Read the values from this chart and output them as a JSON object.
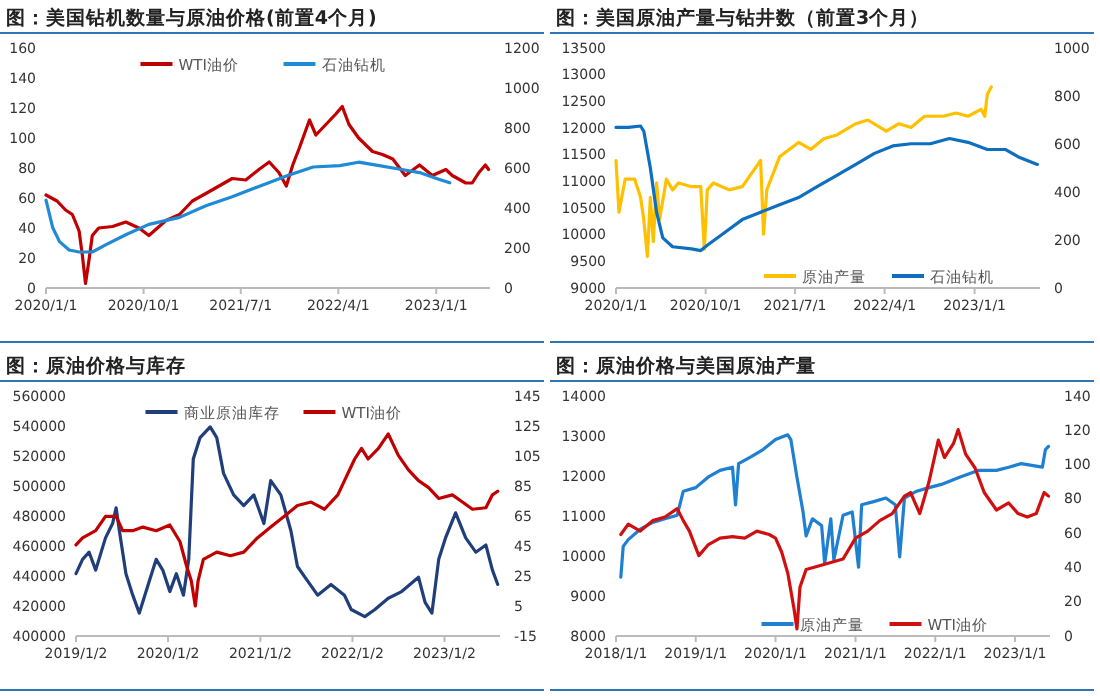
{
  "chart_data": [
    {
      "type": "line",
      "title": "图：美国钻机数量与原油价格(前置4个月)",
      "legend": "top",
      "xlim": [
        "2020-01-01",
        "2023-06-01"
      ],
      "xticks": [
        {
          "value": "2020-01-01",
          "label": "2020/1/1"
        },
        {
          "value": "2020-10-01",
          "label": "2020/10/1"
        },
        {
          "value": "2021-07-01",
          "label": "2021/7/1"
        },
        {
          "value": "2022-04-01",
          "label": "2022/4/1"
        },
        {
          "value": "2023-01-01",
          "label": "2023/1/1"
        }
      ],
      "ylim": [
        0,
        160
      ],
      "yticks": [
        0,
        20,
        40,
        60,
        80,
        100,
        120,
        140,
        160
      ],
      "y2lim": [
        0,
        1200
      ],
      "y2ticks": [
        0,
        200,
        400,
        600,
        800,
        1000,
        1200
      ],
      "series": [
        {
          "name": "WTI油价",
          "color": "#c00000",
          "x": [
            "2020-01-01",
            "2020-02-01",
            "2020-02-25",
            "2020-03-15",
            "2020-04-03",
            "2020-04-12",
            "2020-04-21",
            "2020-05-01",
            "2020-05-10",
            "2020-05-28",
            "2020-07-06",
            "2020-08-12",
            "2020-09-18",
            "2020-10-16",
            "2020-12-03",
            "2021-01-10",
            "2021-02-15",
            "2021-03-25",
            "2021-05-01",
            "2021-06-07",
            "2021-07-15",
            "2021-08-21",
            "2021-09-19",
            "2021-10-16",
            "2021-11-06",
            "2021-11-24",
            "2021-12-12",
            "2022-01-10",
            "2022-01-28",
            "2022-02-25",
            "2022-03-25",
            "2022-04-12",
            "2022-05-01",
            "2022-05-28",
            "2022-07-06",
            "2022-08-03",
            "2022-09-01",
            "2022-10-06",
            "2022-11-15",
            "2022-12-21",
            "2023-01-28",
            "2023-02-15",
            "2023-03-25",
            "2023-04-12",
            "2023-05-01",
            "2023-05-19",
            "2023-05-28"
          ],
          "values": [
            62,
            58,
            52,
            49,
            38,
            22,
            3,
            19,
            35,
            40,
            41,
            44,
            40,
            35,
            45,
            49,
            58,
            63,
            68,
            73,
            72,
            79,
            84,
            77,
            68,
            82,
            93,
            112,
            102,
            109,
            116,
            121,
            109,
            100,
            91,
            89,
            86,
            75,
            82,
            75,
            79,
            75,
            70,
            70,
            77,
            82,
            79
          ]
        },
        {
          "name": "石油钻机",
          "color": "#1f8ad6",
          "axis": "y2",
          "x": [
            "2020-01-01",
            "2020-01-20",
            "2020-02-08",
            "2020-03-06",
            "2020-04-03",
            "2020-05-10",
            "2020-06-15",
            "2020-08-12",
            "2020-10-16",
            "2021-01-10",
            "2021-03-25",
            "2021-06-07",
            "2021-08-21",
            "2021-11-06",
            "2022-01-20",
            "2022-04-05",
            "2022-05-28",
            "2022-07-25",
            "2022-09-18",
            "2022-11-15",
            "2023-01-10",
            "2023-02-08"
          ],
          "values": [
            439,
            301,
            232,
            190,
            180,
            180,
            214,
            266,
            318,
            353,
            411,
            456,
            508,
            560,
            605,
            612,
            629,
            612,
            595,
            577,
            543,
            526
          ]
        }
      ]
    },
    {
      "type": "line",
      "title": "图：美国原油产量与钻井数（前置3个月）",
      "legend": "bottom",
      "xlim": [
        "2020-01-01",
        "2023-07-20"
      ],
      "xticks": [
        {
          "value": "2020-01-01",
          "label": "2020/1/1"
        },
        {
          "value": "2020-10-01",
          "label": "2020/10/1"
        },
        {
          "value": "2021-07-01",
          "label": "2021/7/1"
        },
        {
          "value": "2022-04-01",
          "label": "2022/4/1"
        },
        {
          "value": "2023-01-01",
          "label": "2023/1/1"
        }
      ],
      "ylim": [
        9000,
        13500
      ],
      "yticks": [
        9000,
        9500,
        10000,
        10500,
        11000,
        11500,
        12000,
        12500,
        13000,
        13500
      ],
      "y2lim": [
        0,
        1000
      ],
      "y2ticks": [
        0,
        200,
        400,
        600,
        800,
        1000
      ],
      "series": [
        {
          "name": "原油产量",
          "color": "#ffc000",
          "x": [
            "2020-01-01",
            "2020-01-10",
            "2020-01-29",
            "2020-02-27",
            "2020-03-16",
            "2020-03-26",
            "2020-04-06",
            "2020-04-15",
            "2020-04-24",
            "2020-05-04",
            "2020-05-13",
            "2020-06-03",
            "2020-06-22",
            "2020-07-10",
            "2020-08-19",
            "2020-09-16",
            "2020-09-27",
            "2020-10-06",
            "2020-10-25",
            "2020-12-12",
            "2021-01-21",
            "2021-03-18",
            "2021-03-27",
            "2021-04-06",
            "2021-05-15",
            "2021-07-12",
            "2021-08-19",
            "2021-09-27",
            "2021-11-06",
            "2022-01-03",
            "2022-02-09",
            "2022-04-06",
            "2022-05-15",
            "2022-06-21",
            "2022-08-01",
            "2022-09-27",
            "2022-11-06",
            "2022-12-12",
            "2023-01-21",
            "2023-02-01",
            "2023-02-09",
            "2023-02-21"
          ],
          "values": [
            11390,
            10420,
            11040,
            11040,
            10700,
            10280,
            9590,
            10700,
            9870,
            10970,
            10280,
            11040,
            10840,
            10970,
            10900,
            10900,
            9730,
            10840,
            10970,
            10840,
            10900,
            11390,
            10010,
            10840,
            11460,
            11730,
            11600,
            11800,
            11870,
            12080,
            12150,
            11940,
            12080,
            12010,
            12220,
            12220,
            12280,
            12220,
            12350,
            12220,
            12630,
            12770
          ]
        },
        {
          "name": "石油钻机",
          "color": "#0e6ebf",
          "axis": "y2",
          "x": [
            "2020-01-01",
            "2020-02-08",
            "2020-03-16",
            "2020-03-26",
            "2020-04-15",
            "2020-05-04",
            "2020-05-23",
            "2020-06-22",
            "2020-08-19",
            "2020-09-16",
            "2020-10-06",
            "2020-11-21",
            "2021-01-21",
            "2021-03-18",
            "2021-05-15",
            "2021-07-12",
            "2021-09-08",
            "2021-11-06",
            "2022-01-03",
            "2022-03-01",
            "2022-04-26",
            "2022-06-21",
            "2022-08-19",
            "2022-10-16",
            "2022-12-12",
            "2023-02-09",
            "2023-04-06",
            "2023-05-15",
            "2023-07-12"
          ],
          "values": [
            669,
            669,
            675,
            653,
            500,
            316,
            209,
            172,
            163,
            156,
            178,
            224,
            285,
            316,
            347,
            377,
            423,
            469,
            515,
            561,
            592,
            601,
            601,
            623,
            607,
            577,
            577,
            546,
            515
          ]
        }
      ]
    },
    {
      "type": "line",
      "title": "图：原油价格与库存",
      "legend": "top",
      "xlim": [
        "2019-01-02",
        "2023-08-10"
      ],
      "xticks": [
        {
          "value": "2019-01-02",
          "label": "2019/1/2"
        },
        {
          "value": "2020-01-02",
          "label": "2020/1/2"
        },
        {
          "value": "2021-01-02",
          "label": "2021/1/2"
        },
        {
          "value": "2022-01-02",
          "label": "2022/1/2"
        },
        {
          "value": "2023-01-02",
          "label": "2023/1/2"
        }
      ],
      "ylim": [
        400000,
        560000
      ],
      "yticks": [
        400000,
        420000,
        440000,
        460000,
        480000,
        500000,
        520000,
        540000,
        560000
      ],
      "y2lim": [
        -15,
        145
      ],
      "y2ticks": [
        -15,
        5,
        25,
        45,
        65,
        85,
        105,
        125,
        145
      ],
      "series": [
        {
          "name": "商业原油库存",
          "color": "#203f7a",
          "x": [
            "2019-01-02",
            "2019-01-28",
            "2019-02-23",
            "2019-03-21",
            "2019-04-29",
            "2019-05-27",
            "2019-06-10",
            "2019-06-23",
            "2019-07-19",
            "2019-08-15",
            "2019-09-10",
            "2019-10-20",
            "2019-11-16",
            "2019-12-12",
            "2020-01-09",
            "2020-02-04",
            "2020-03-03",
            "2020-03-24",
            "2020-04-11",
            "2020-05-08",
            "2020-06-17",
            "2020-07-13",
            "2020-08-09",
            "2020-09-18",
            "2020-10-28",
            "2020-12-07",
            "2021-01-16",
            "2021-02-12",
            "2021-03-24",
            "2021-05-03",
            "2021-05-29",
            "2021-07-08",
            "2021-08-17",
            "2021-10-09",
            "2021-12-01",
            "2021-12-28",
            "2022-02-20",
            "2022-04-01",
            "2022-05-24",
            "2022-07-16",
            "2022-09-21",
            "2022-10-17",
            "2022-11-13",
            "2022-12-10",
            "2023-01-06",
            "2023-02-15",
            "2023-03-27",
            "2023-05-06",
            "2023-06-15",
            "2023-07-11",
            "2023-08-01"
          ],
          "values": [
            441550,
            451100,
            455870,
            443930,
            465400,
            474980,
            485480,
            470200,
            441550,
            427220,
            415280,
            436770,
            451100,
            443930,
            429610,
            441550,
            427220,
            451100,
            517950,
            532280,
            539450,
            532280,
            508400,
            494080,
            486910,
            494080,
            474980,
            503630,
            494080,
            470200,
            446320,
            436770,
            427220,
            434380,
            427220,
            417670,
            412890,
            417670,
            425200,
            429610,
            439160,
            422450,
            415280,
            451100,
            465400,
            482140,
            465400,
            455870,
            460650,
            443930,
            434380
          ]
        },
        {
          "name": "WTI油价",
          "color": "#c00000",
          "axis": "y2",
          "x": [
            "2019-01-02",
            "2019-01-28",
            "2019-03-21",
            "2019-04-29",
            "2019-06-10",
            "2019-07-06",
            "2019-08-15",
            "2019-09-24",
            "2019-11-16",
            "2020-01-09",
            "2020-02-18",
            "2020-03-16",
            "2020-04-03",
            "2020-04-19",
            "2020-04-30",
            "2020-05-21",
            "2020-07-13",
            "2020-09-05",
            "2020-10-28",
            "2020-12-21",
            "2021-02-12",
            "2021-04-07",
            "2021-05-29",
            "2021-07-22",
            "2021-09-13",
            "2021-11-05",
            "2021-12-15",
            "2022-01-11",
            "2022-02-07",
            "2022-03-05",
            "2022-04-15",
            "2022-05-24",
            "2022-07-03",
            "2022-08-12",
            "2022-09-21",
            "2022-10-31",
            "2022-12-10",
            "2023-02-02",
            "2023-03-14",
            "2023-04-23",
            "2023-06-15",
            "2023-07-11",
            "2023-08-01"
          ],
          "values": [
            45.7,
            50.4,
            55.2,
            64.8,
            64.8,
            55.2,
            55.2,
            57.6,
            55.2,
            59,
            48,
            31.3,
            21.8,
            5,
            21.8,
            36.1,
            40.9,
            38.5,
            40.9,
            50.4,
            57.6,
            64.8,
            72,
            74.3,
            69.5,
            79.1,
            93.4,
            103,
            110.1,
            103,
            110.1,
            119.7,
            105.4,
            95.8,
            88.6,
            83.9,
            76.7,
            79.1,
            74.3,
            69.5,
            70.5,
            79.1,
            81.5
          ]
        }
      ]
    },
    {
      "type": "line",
      "title": "图：原油价格与美国原油产量",
      "legend": "bottom",
      "xlim": [
        "2018-01-01",
        "2023-06-10"
      ],
      "xticks": [
        {
          "value": "2018-01-01",
          "label": "2018/1/1"
        },
        {
          "value": "2019-01-01",
          "label": "2019/1/1"
        },
        {
          "value": "2020-01-01",
          "label": "2020/1/1"
        },
        {
          "value": "2021-01-01",
          "label": "2021/1/1"
        },
        {
          "value": "2022-01-01",
          "label": "2022/1/1"
        },
        {
          "value": "2023-01-01",
          "label": "2023/1/1"
        }
      ],
      "ylim": [
        8000,
        14000
      ],
      "yticks": [
        8000,
        9000,
        10000,
        11000,
        12000,
        13000,
        14000
      ],
      "y2lim": [
        0,
        140
      ],
      "y2ticks": [
        0,
        20,
        40,
        60,
        80,
        100,
        120,
        140
      ],
      "series": [
        {
          "name": "原油产量",
          "color": "#1f7fd0",
          "x": [
            "2018-01-23",
            "2018-02-03",
            "2018-02-26",
            "2018-04-22",
            "2018-06-18",
            "2018-08-13",
            "2018-10-08",
            "2018-11-05",
            "2019-01-01",
            "2019-02-26",
            "2019-04-22",
            "2019-06-18",
            "2019-07-02",
            "2019-07-16",
            "2019-09-10",
            "2019-11-05",
            "2020-01-01",
            "2020-02-26",
            "2020-03-11",
            "2020-04-08",
            "2020-05-06",
            "2020-05-20",
            "2020-06-18",
            "2020-07-30",
            "2020-08-13",
            "2020-09-10",
            "2020-09-24",
            "2020-11-05",
            "2020-12-17",
            "2021-01-15",
            "2021-01-29",
            "2021-03-25",
            "2021-05-20",
            "2021-07-02",
            "2021-07-22",
            "2021-08-13",
            "2021-10-08",
            "2021-12-03",
            "2022-01-29",
            "2022-04-22",
            "2022-07-16",
            "2022-10-08",
            "2022-12-03",
            "2023-01-29",
            "2023-05-06",
            "2023-05-20",
            "2023-06-03"
          ],
          "values": [
            9470,
            10240,
            10410,
            10670,
            10840,
            10930,
            11020,
            11620,
            11710,
            11970,
            12140,
            12220,
            11280,
            12310,
            12480,
            12660,
            12910,
            13030,
            12910,
            11970,
            11100,
            10500,
            10930,
            10760,
            9810,
            10930,
            9900,
            11020,
            11100,
            9720,
            11280,
            11360,
            11450,
            11280,
            9980,
            11450,
            11620,
            11710,
            11790,
            11970,
            12140,
            12140,
            12220,
            12310,
            12220,
            12660,
            12740
          ]
        },
        {
          "name": "WTI油价",
          "color": "#d01010",
          "axis": "y2",
          "x": [
            "2018-01-23",
            "2018-02-26",
            "2018-04-22",
            "2018-06-18",
            "2018-08-13",
            "2018-10-08",
            "2018-11-05",
            "2018-12-03",
            "2019-01-15",
            "2019-02-26",
            "2019-04-22",
            "2019-06-18",
            "2019-08-13",
            "2019-10-08",
            "2019-12-03",
            "2020-01-01",
            "2020-01-29",
            "2020-02-26",
            "2020-03-25",
            "2020-04-08",
            "2020-04-22",
            "2020-05-20",
            "2020-07-16",
            "2020-09-10",
            "2020-11-05",
            "2021-01-01",
            "2021-02-26",
            "2021-04-22",
            "2021-06-18",
            "2021-08-13",
            "2021-09-10",
            "2021-10-22",
            "2021-12-03",
            "2022-01-15",
            "2022-02-12",
            "2022-03-25",
            "2022-04-16",
            "2022-05-20",
            "2022-07-02",
            "2022-08-13",
            "2022-10-08",
            "2022-12-03",
            "2023-01-15",
            "2023-02-26",
            "2023-04-08",
            "2023-05-14",
            "2023-06-03"
          ],
          "values": [
            59.2,
            65.3,
            61.2,
            67.3,
            69.4,
            74.3,
            67.3,
            61.2,
            46.9,
            53.1,
            57.1,
            58,
            57.1,
            61.2,
            59.2,
            57.1,
            49,
            36.7,
            16.3,
            4.1,
            28.6,
            38.8,
            40.8,
            42.9,
            44.9,
            57.1,
            61.2,
            67.3,
            71.4,
            81.6,
            83.7,
            71.4,
            89.8,
            114.3,
            104.1,
            112.2,
            120.4,
            106.1,
            98,
            83.7,
            73.5,
            77.6,
            71.4,
            69.4,
            71.4,
            83.7,
            81.6
          ]
        }
      ]
    }
  ]
}
